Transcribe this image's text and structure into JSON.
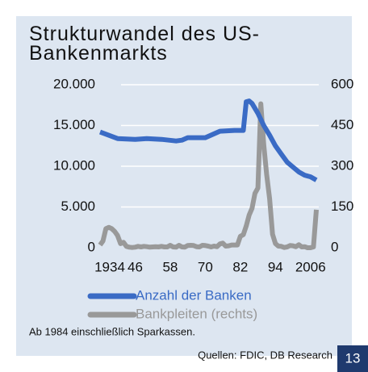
{
  "chart_data": {
    "type": "line",
    "title": "Strukturwandel des US-Bankenmarkts",
    "xlim": [
      1934,
      2008
    ],
    "xticks": [
      1934,
      {
        "value": 1946,
        "label": "46"
      },
      {
        "value": 1958,
        "label": "58"
      },
      {
        "value": 1970,
        "label": "70"
      },
      {
        "value": 1982,
        "label": "82"
      },
      {
        "value": 1994,
        "label": "94"
      },
      2006
    ],
    "ylim": [
      0,
      20000
    ],
    "yticks": [
      0,
      {
        "value": 5000,
        "label": "5.000"
      },
      {
        "value": 10000,
        "label": "10.000"
      },
      {
        "value": 15000,
        "label": "15.000"
      },
      {
        "value": 20000,
        "label": "20.000"
      }
    ],
    "y2lim": [
      0,
      600
    ],
    "y2ticks": [
      0,
      150,
      300,
      450,
      600
    ],
    "grid": true,
    "series": [
      {
        "name": "Anzahl der Banken",
        "color": "#3a6bc5",
        "x": [
          1934,
          1940,
          1946,
          1950,
          1955,
          1960,
          1962,
          1964,
          1970,
          1975,
          1980,
          1983,
          1984,
          1985,
          1986,
          1988,
          1990,
          1992,
          1994,
          1996,
          1998,
          2000,
          2002,
          2004,
          2006,
          2008
        ],
        "values": [
          14200,
          13400,
          13300,
          13400,
          13300,
          13100,
          13200,
          13500,
          13500,
          14300,
          14400,
          14400,
          17900,
          18000,
          17700,
          16500,
          15000,
          13800,
          12500,
          11500,
          10500,
          9900,
          9300,
          8900,
          8700,
          8300
        ]
      },
      {
        "name": "Bankpleiten (rechts)",
        "color": "#999999",
        "axis": "y2",
        "x": [
          1934,
          1935,
          1936,
          1937,
          1938,
          1939,
          1940,
          1941,
          1942,
          1943,
          1944,
          1945,
          1946,
          1947,
          1948,
          1949,
          1950,
          1951,
          1952,
          1953,
          1954,
          1955,
          1956,
          1957,
          1958,
          1959,
          1960,
          1961,
          1962,
          1963,
          1964,
          1965,
          1966,
          1967,
          1968,
          1969,
          1970,
          1971,
          1972,
          1973,
          1974,
          1975,
          1976,
          1977,
          1978,
          1979,
          1980,
          1981,
          1982,
          1983,
          1984,
          1985,
          1986,
          1987,
          1988,
          1989,
          1990,
          1991,
          1992,
          1993,
          1994,
          1995,
          1996,
          1997,
          1998,
          1999,
          2000,
          2001,
          2002,
          2003,
          2004,
          2005,
          2006,
          2007,
          2008
        ],
        "values": [
          10,
          25,
          70,
          75,
          70,
          60,
          45,
          15,
          20,
          5,
          2,
          1,
          2,
          5,
          3,
          5,
          4,
          2,
          3,
          4,
          3,
          5,
          3,
          3,
          9,
          3,
          2,
          9,
          3,
          2,
          8,
          9,
          8,
          4,
          3,
          9,
          8,
          6,
          3,
          6,
          4,
          14,
          17,
          6,
          7,
          10,
          10,
          10,
          42,
          48,
          80,
          120,
          145,
          200,
          220,
          530,
          380,
          270,
          180,
          50,
          15,
          6,
          5,
          1,
          3,
          8,
          7,
          4,
          11,
          3,
          4,
          0,
          0,
          3,
          140
        ]
      }
    ],
    "note": "Ab 1984 einschließlich Sparkassen.",
    "source": "Quellen: FDIC, DB Research",
    "page_number": "13"
  }
}
